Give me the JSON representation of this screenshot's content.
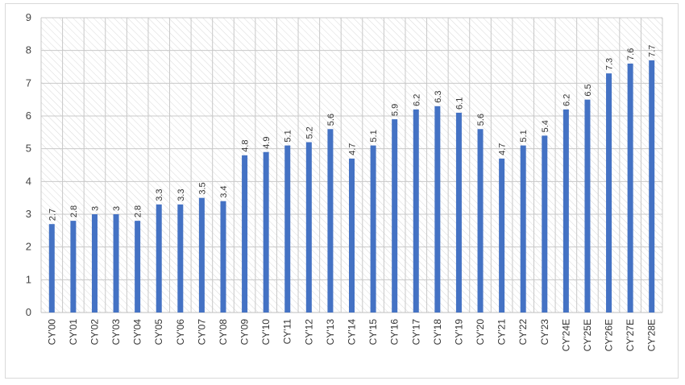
{
  "chart_data": {
    "type": "bar",
    "categories": [
      "CY'00",
      "CY'01",
      "CY'02",
      "CY'03",
      "CY'04",
      "CY'05",
      "CY'06",
      "CY'07",
      "CY'08",
      "CY'09",
      "CY'10",
      "CY'11",
      "CY'12",
      "CY'13",
      "CY'14",
      "CY'15",
      "CY'16",
      "CY'17",
      "CY'18",
      "CY'19",
      "CY'20",
      "CY'21",
      "CY'22",
      "CY'23",
      "CY'24E",
      "CY'25E",
      "CY'26E",
      "CY'27E",
      "CY'28E"
    ],
    "values": [
      2.7,
      2.8,
      3,
      3,
      2.8,
      3.3,
      3.3,
      3.5,
      3.4,
      4.8,
      4.9,
      5.1,
      5.2,
      5.6,
      4.7,
      5.1,
      5.9,
      6.2,
      6.3,
      6.1,
      5.6,
      4.7,
      5.1,
      5.4,
      6.2,
      6.5,
      7.3,
      7.6,
      7.7
    ],
    "value_labels": [
      "2.7",
      "2.8",
      "3",
      "3",
      "2.8",
      "3.3",
      "3.3",
      "3.5",
      "3.4",
      "4.8",
      "4.9",
      "5.1",
      "5.2",
      "5.6",
      "4.7",
      "5.1",
      "5.9",
      "6.2",
      "6.3",
      "6.1",
      "5.6",
      "4.7",
      "5.1",
      "5.4",
      "6.2",
      "6.5",
      "7.3",
      "7.6",
      "7.7"
    ],
    "yticks": [
      "0",
      "1",
      "2",
      "3",
      "4",
      "5",
      "6",
      "7",
      "8",
      "9"
    ],
    "ylim": [
      0,
      9
    ],
    "bar_color": "#4472c4",
    "grid": true,
    "plot_background": "hatched"
  }
}
